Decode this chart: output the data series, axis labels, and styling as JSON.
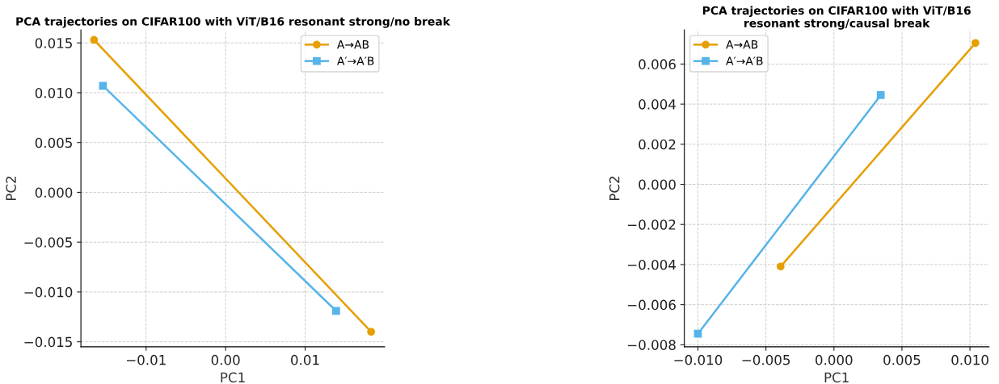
{
  "chart_data": [
    {
      "type": "line",
      "title": "PCA trajectories on CIFAR100 with ViT/B16 resonant strong/no break",
      "xlabel": "PC1",
      "ylabel": "PC2",
      "xlim": [
        -0.0182,
        0.02
      ],
      "ylim": [
        -0.0155,
        0.0163
      ],
      "xticks": [
        {
          "value": -0.01,
          "label": "−0.01"
        },
        "0.00",
        0.01
      ],
      "yticks": [
        {
          "value": -0.015,
          "label": "−0.015"
        },
        {
          "value": -0.01,
          "label": "−0.010"
        },
        {
          "value": -0.005,
          "label": "−0.005"
        },
        {
          "value": 0,
          "label": "0.000"
        },
        {
          "value": 0.005,
          "label": "0.005"
        },
        {
          "value": 0.01,
          "label": "0.010"
        },
        0.015
      ],
      "grid": true,
      "legend": "top right",
      "series": [
        {
          "name": "A→AB",
          "color": "#e69f00",
          "marker": "circle",
          "x": [
            -0.01655,
            0.0183
          ],
          "values": [
            0.0153,
            -0.014
          ]
        },
        {
          "name": "A′→A′B",
          "color": "#56b4e9",
          "marker": "square",
          "x": [
            -0.01543,
            0.0139
          ],
          "values": [
            0.0107,
            -0.0119
          ]
        }
      ]
    },
    {
      "type": "line",
      "title": "PCA trajectories on CIFAR100 with ViT/B16 resonant strong/causal break",
      "xlabel": "PC1",
      "ylabel": "PC2",
      "xlim": [
        -0.011,
        0.0114
      ],
      "ylim": [
        -0.0081,
        0.0077
      ],
      "xticks": [
        {
          "value": -0.01,
          "label": "−0.010"
        },
        {
          "value": -0.005,
          "label": "−0.005"
        },
        {
          "value": 0,
          "label": "0.000"
        },
        0.005,
        {
          "value": 0.01,
          "label": "0.010"
        }
      ],
      "yticks": [
        {
          "value": -0.008,
          "label": "−0.008"
        },
        {
          "value": -0.006,
          "label": "−0.006"
        },
        {
          "value": -0.004,
          "label": "−0.004"
        },
        {
          "value": -0.002,
          "label": "−0.002"
        },
        {
          "value": 0,
          "label": "0.000"
        },
        0.002,
        0.004,
        0.006
      ],
      "grid": true,
      "legend": "top left",
      "series": [
        {
          "name": "A→AB",
          "color": "#e69f00",
          "marker": "circle",
          "x": [
            -0.00392,
            0.0104
          ],
          "values": [
            -0.0041,
            0.00705
          ]
        },
        {
          "name": "A′→A′B",
          "color": "#56b4e9",
          "marker": "square",
          "x": [
            -0.01,
            0.00344
          ],
          "values": [
            -0.00745,
            0.00445
          ]
        }
      ]
    }
  ]
}
